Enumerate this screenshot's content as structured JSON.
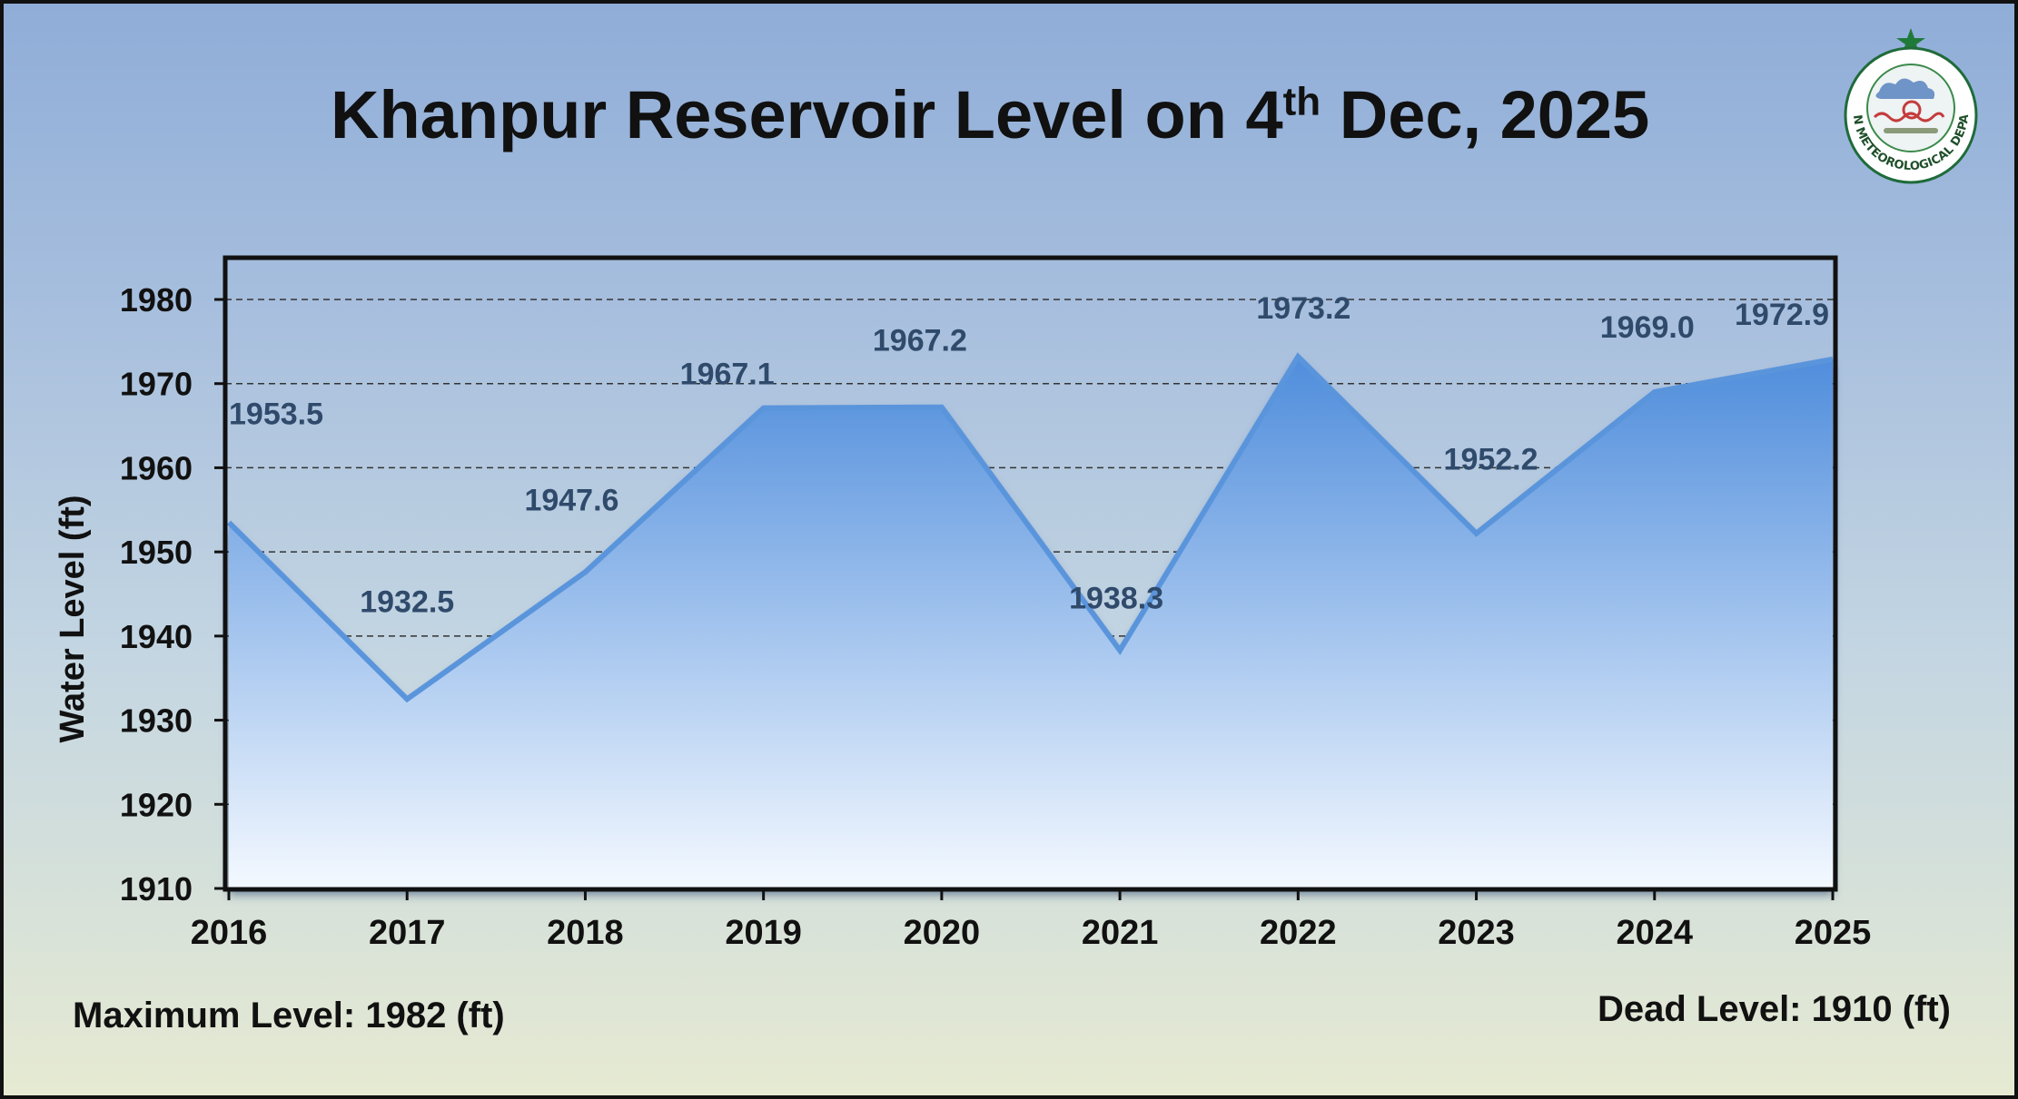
{
  "title": {
    "prefix": "Khanpur Reservoir Level on 4",
    "superscript": "th",
    "suffix": " Dec, 2025"
  },
  "logo": {
    "icon": "pakistan-meteorological-department-logo",
    "text": "PAKISTAN METEOROLOGICAL DEPARTMENT"
  },
  "footer": {
    "max_level": "Maximum Level: 1982 (ft)",
    "dead_level": "Dead Level: 1910 (ft)"
  },
  "colors": {
    "line": "#5a95dc",
    "area_top": "#4f8ddc",
    "area_bottom": "#f4f9ff",
    "data_label": "#2f4a6b"
  },
  "chart_data": {
    "type": "area",
    "title": "Khanpur Reservoir Level on 4th Dec, 2025",
    "xlabel": "",
    "ylabel": "Water Level (ft)",
    "categories": [
      "2016",
      "2017",
      "2018",
      "2019",
      "2020",
      "2021",
      "2022",
      "2023",
      "2024",
      "2025"
    ],
    "values": [
      1953.5,
      1932.5,
      1947.6,
      1967.1,
      1967.2,
      1938.3,
      1973.2,
      1952.2,
      1969.0,
      1972.9
    ],
    "data_labels": [
      "1953.5",
      "1932.5",
      "1947.6",
      "1967.1",
      "1967.2",
      "1938.3",
      "1973.2",
      "1952.2",
      "1969.0",
      "1972.9"
    ],
    "ylim": [
      1910,
      1980
    ],
    "yticks": [
      "1910",
      "1920",
      "1930",
      "1940",
      "1950",
      "1960",
      "1970",
      "1980"
    ],
    "grid": true,
    "legend": "none"
  }
}
